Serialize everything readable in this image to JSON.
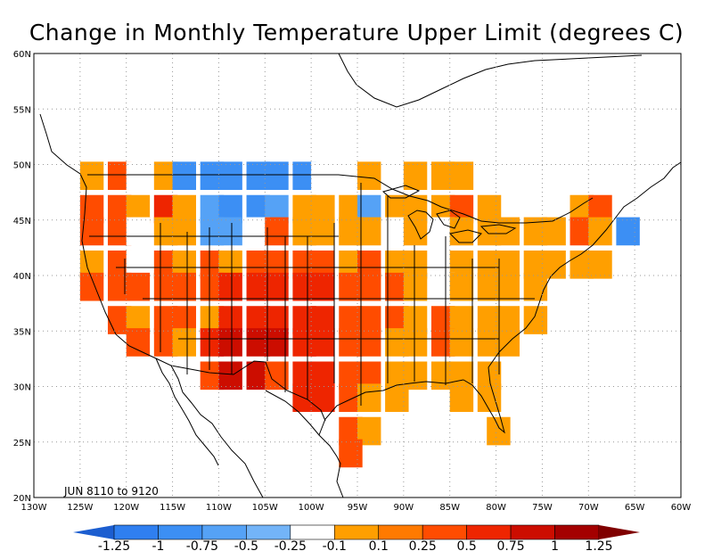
{
  "title": "Change in Monthly Temperature Upper Limit (degrees C)",
  "period_label": "JUN 8110 to 9120",
  "map": {
    "lon_range": [
      -130,
      -60
    ],
    "lat_range": [
      20,
      60
    ],
    "lon_ticks": [
      "130W",
      "125W",
      "120W",
      "115W",
      "110W",
      "105W",
      "100W",
      "95W",
      "90W",
      "85W",
      "80W",
      "75W",
      "70W",
      "65W",
      "60W"
    ],
    "lat_ticks": [
      "20N",
      "25N",
      "30N",
      "35N",
      "40N",
      "45N",
      "50N",
      "55N",
      "60N"
    ],
    "grid": "dotted"
  },
  "colorbar": {
    "labels": [
      "-1.25",
      "-1",
      "-0.75",
      "-0.5",
      "-0.25",
      "-0.1",
      "0.1",
      "0.25",
      "0.5",
      "0.75",
      "1",
      "1.25"
    ],
    "colors": [
      "#2b6fe0",
      "#2f7ff0",
      "#3c8ff4",
      "#55a2f6",
      "#73b4f8",
      "#ffffff",
      "#ff9f00",
      "#ff7a00",
      "#ff4c00",
      "#ee2500",
      "#cc0d00",
      "#a40000"
    ],
    "low_arrow_color": "#1c5ed0",
    "high_arrow_color": "#800000"
  },
  "grid_cells": {
    "cell_size_deg": 2.5,
    "rows": [
      {
        "lat": 49,
        "cells": [
          [
            -125,
            "o"
          ],
          [
            -122,
            "r"
          ],
          [
            -120,
            "W"
          ],
          [
            -117,
            "o"
          ],
          [
            -115,
            "b2"
          ],
          [
            -112,
            "b2"
          ],
          [
            -110,
            "b2"
          ],
          [
            -107,
            "b2"
          ],
          [
            -105,
            "b2"
          ],
          [
            -102,
            "b2"
          ],
          [
            -100,
            "W"
          ],
          [
            -97,
            "W"
          ],
          [
            -95,
            "o"
          ],
          [
            -92,
            "W"
          ],
          [
            -90,
            "o"
          ],
          [
            -87,
            "o"
          ],
          [
            -85,
            "o"
          ],
          [
            -82,
            "W"
          ]
        ]
      },
      {
        "lat": 46,
        "cells": [
          [
            -125,
            "r"
          ],
          [
            -122,
            "r"
          ],
          [
            -120,
            "o"
          ],
          [
            -117,
            "rr"
          ],
          [
            -115,
            "o"
          ],
          [
            -112,
            "b1"
          ],
          [
            -110,
            "b2"
          ],
          [
            -107,
            "b2"
          ],
          [
            -105,
            "b1"
          ],
          [
            -102,
            "o"
          ],
          [
            -100,
            "o"
          ],
          [
            -97,
            "o"
          ],
          [
            -95,
            "b1"
          ],
          [
            -92,
            "o"
          ],
          [
            -90,
            "o"
          ],
          [
            -87,
            "o"
          ],
          [
            -85,
            "r"
          ],
          [
            -82,
            "o"
          ],
          [
            -72,
            "o"
          ],
          [
            -70,
            "r"
          ]
        ]
      },
      {
        "lat": 44,
        "cells": [
          [
            -125,
            "r"
          ],
          [
            -122,
            "r"
          ],
          [
            -120,
            "W"
          ],
          [
            -117,
            "o"
          ],
          [
            -115,
            "o"
          ],
          [
            -112,
            "b1"
          ],
          [
            -110,
            "b1"
          ],
          [
            -107,
            "W"
          ],
          [
            -105,
            "r"
          ],
          [
            -102,
            "o"
          ],
          [
            -100,
            "o"
          ],
          [
            -97,
            "o"
          ],
          [
            -95,
            "o"
          ],
          [
            -92,
            "W"
          ],
          [
            -90,
            "o"
          ],
          [
            -87,
            "W"
          ],
          [
            -85,
            "o"
          ],
          [
            -82,
            "o"
          ],
          [
            -80,
            "o"
          ],
          [
            -77,
            "o"
          ],
          [
            -75,
            "o"
          ],
          [
            -72,
            "r"
          ],
          [
            -70,
            "o"
          ],
          [
            -67,
            "b2"
          ]
        ]
      },
      {
        "lat": 41,
        "cells": [
          [
            -125,
            "o"
          ],
          [
            -122,
            "r"
          ],
          [
            -120,
            "W"
          ],
          [
            -117,
            "r"
          ],
          [
            -115,
            "o"
          ],
          [
            -112,
            "r"
          ],
          [
            -110,
            "o"
          ],
          [
            -107,
            "r"
          ],
          [
            -105,
            "r"
          ],
          [
            -102,
            "r"
          ],
          [
            -100,
            "r"
          ],
          [
            -97,
            "o"
          ],
          [
            -95,
            "r"
          ],
          [
            -92,
            "o"
          ],
          [
            -90,
            "o"
          ],
          [
            -87,
            "W"
          ],
          [
            -85,
            "o"
          ],
          [
            -82,
            "o"
          ],
          [
            -80,
            "o"
          ],
          [
            -77,
            "o"
          ],
          [
            -75,
            "o"
          ],
          [
            -72,
            "o"
          ],
          [
            -70,
            "o"
          ]
        ]
      },
      {
        "lat": 39,
        "cells": [
          [
            -125,
            "r"
          ],
          [
            -122,
            "r"
          ],
          [
            -120,
            "r"
          ],
          [
            -117,
            "r"
          ],
          [
            -115,
            "r"
          ],
          [
            -112,
            "r"
          ],
          [
            -110,
            "rr"
          ],
          [
            -107,
            "rr"
          ],
          [
            -105,
            "rr"
          ],
          [
            -102,
            "rr"
          ],
          [
            -100,
            "rr"
          ],
          [
            -97,
            "r"
          ],
          [
            -95,
            "r"
          ],
          [
            -92,
            "r"
          ],
          [
            -90,
            "o"
          ],
          [
            -87,
            "W"
          ],
          [
            -85,
            "o"
          ],
          [
            -82,
            "o"
          ],
          [
            -80,
            "o"
          ],
          [
            -77,
            "o"
          ]
        ]
      },
      {
        "lat": 36,
        "cells": [
          [
            -122,
            "r"
          ],
          [
            -120,
            "o"
          ],
          [
            -117,
            "r"
          ],
          [
            -115,
            "r"
          ],
          [
            -112,
            "o"
          ],
          [
            -110,
            "rr"
          ],
          [
            -107,
            "rr"
          ],
          [
            -105,
            "rr"
          ],
          [
            -102,
            "rr"
          ],
          [
            -100,
            "rr"
          ],
          [
            -97,
            "r"
          ],
          [
            -95,
            "r"
          ],
          [
            -92,
            "r"
          ],
          [
            -90,
            "o"
          ],
          [
            -87,
            "r"
          ],
          [
            -85,
            "o"
          ],
          [
            -82,
            "o"
          ],
          [
            -80,
            "o"
          ],
          [
            -77,
            "o"
          ]
        ]
      },
      {
        "lat": 34,
        "cells": [
          [
            -120,
            "r"
          ],
          [
            -117,
            "r"
          ],
          [
            -115,
            "o"
          ],
          [
            -112,
            "rr"
          ],
          [
            -110,
            "d"
          ],
          [
            -107,
            "d"
          ],
          [
            -105,
            "d"
          ],
          [
            -102,
            "rr"
          ],
          [
            -100,
            "rr"
          ],
          [
            -97,
            "r"
          ],
          [
            -95,
            "r"
          ],
          [
            -92,
            "o"
          ],
          [
            -90,
            "o"
          ],
          [
            -87,
            "r"
          ],
          [
            -85,
            "o"
          ],
          [
            -82,
            "o"
          ],
          [
            -80,
            "o"
          ]
        ]
      },
      {
        "lat": 31,
        "cells": [
          [
            -112,
            "r"
          ],
          [
            -110,
            "d"
          ],
          [
            -107,
            "d"
          ],
          [
            -105,
            "r"
          ],
          [
            -102,
            "rr"
          ],
          [
            -100,
            "rr"
          ],
          [
            -97,
            "r"
          ],
          [
            -95,
            "r"
          ],
          [
            -92,
            "o"
          ],
          [
            -90,
            "o"
          ],
          [
            -87,
            "o"
          ],
          [
            -85,
            "o"
          ],
          [
            -82,
            "o"
          ]
        ]
      },
      {
        "lat": 29,
        "cells": [
          [
            -102,
            "rr"
          ],
          [
            -100,
            "rr"
          ],
          [
            -97,
            "r"
          ],
          [
            -95,
            "o"
          ],
          [
            -92,
            "o"
          ],
          [
            -85,
            "o"
          ],
          [
            -82,
            "o"
          ]
        ]
      },
      {
        "lat": 26,
        "cells": [
          [
            -97,
            "r"
          ],
          [
            -95,
            "o"
          ],
          [
            -81,
            "o"
          ]
        ]
      },
      {
        "lat": 24,
        "cells": [
          [
            -97,
            "r"
          ]
        ]
      }
    ]
  }
}
